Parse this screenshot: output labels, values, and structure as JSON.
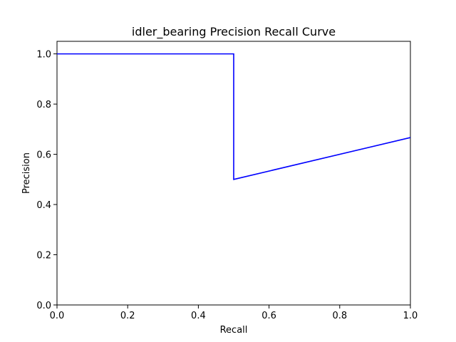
{
  "chart_data": {
    "type": "line",
    "title": "idler_bearing Precision Recall Curve",
    "xlabel": "Recall",
    "ylabel": "Precision",
    "xlim": [
      0.0,
      1.0
    ],
    "ylim": [
      0.0,
      1.05
    ],
    "xticks": [
      "0.0",
      "0.2",
      "0.4",
      "0.6",
      "0.8",
      "1.0"
    ],
    "yticks": [
      "0.0",
      "0.2",
      "0.4",
      "0.6",
      "0.8",
      "1.0"
    ],
    "grid": false,
    "series": [
      {
        "color": "#0000ff",
        "points": [
          [
            0.0,
            1.0
          ],
          [
            0.5,
            1.0
          ],
          [
            0.5,
            0.5
          ],
          [
            1.0,
            0.6667
          ]
        ]
      }
    ]
  }
}
